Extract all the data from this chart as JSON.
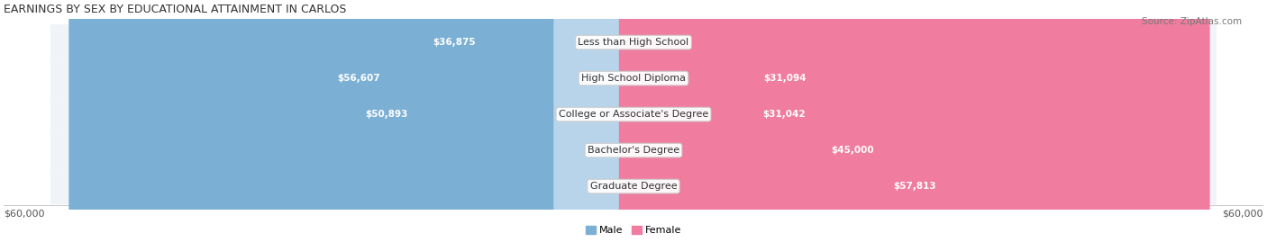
{
  "title": "EARNINGS BY SEX BY EDUCATIONAL ATTAINMENT IN CARLOS",
  "source": "Source: ZipAtlas.com",
  "categories": [
    "Less than High School",
    "High School Diploma",
    "College or Associate's Degree",
    "Bachelor's Degree",
    "Graduate Degree"
  ],
  "male_values": [
    36875,
    56607,
    50893,
    0,
    0
  ],
  "female_values": [
    0,
    31094,
    31042,
    45000,
    57813
  ],
  "max_value": 60000,
  "male_color": "#7bafd4",
  "female_color": "#f07ca0",
  "male_color_light": "#b8d4ea",
  "female_color_light": "#f9c0d0",
  "bg_row_color": "#f0f4f8",
  "label_male": "Male",
  "label_female": "Female",
  "xlabel_left": "$60,000",
  "xlabel_right": "$60,000",
  "title_fontsize": 9,
  "source_fontsize": 7.5,
  "bar_label_fontsize": 7.5,
  "axis_label_fontsize": 8,
  "category_fontsize": 8
}
